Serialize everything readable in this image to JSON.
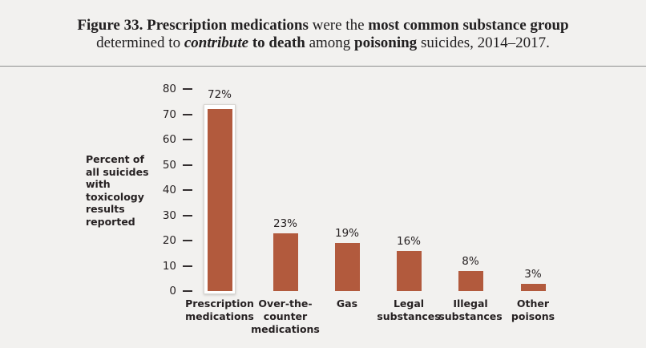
{
  "title": {
    "full_text": "Figure 33. Prescription medications were the most common substance group determined to contribute to death among poisoning suicides, 2014–2017.",
    "line1_segments": [
      {
        "text": "Figure 33. Prescription medications",
        "style": "bold"
      },
      {
        "text": " were the ",
        "style": "regular"
      },
      {
        "text": "most common substance group",
        "style": "bold"
      }
    ],
    "line2_segments": [
      {
        "text": "determined to ",
        "style": "regular"
      },
      {
        "text": "contribute",
        "style": "bold-italic"
      },
      {
        "text": " to death",
        "style": "bold"
      },
      {
        "text": " among ",
        "style": "regular"
      },
      {
        "text": "poisoning",
        "style": "bold"
      },
      {
        "text": " suicides, 2014–2017.",
        "style": "regular"
      }
    ]
  },
  "chart_data": {
    "type": "bar",
    "title": "Figure 33. Prescription medications were the most common substance group determined to contribute to death among poisoning suicides, 2014–2017.",
    "ylabel": "Percent of\nall suicides\nwith\ntoxicology\nresults\nreported",
    "xlabel": "",
    "categories": [
      "Prescription medications",
      "Over-the-counter medications",
      "Gas",
      "Legal substances",
      "Illegal substances",
      "Other poisons"
    ],
    "category_display": [
      "Prescription\nmedications",
      "Over-the-\ncounter\nmedications",
      "Gas",
      "Legal\nsubstances",
      "Illegal\nsubstances",
      "Other\npoisons"
    ],
    "values": [
      72,
      23,
      19,
      16,
      8,
      3
    ],
    "value_labels": [
      "72%",
      "23%",
      "19%",
      "16%",
      "8%",
      "3%"
    ],
    "yticks": [
      80,
      70,
      60,
      50,
      40,
      30,
      20,
      10,
      0
    ],
    "ylim": [
      0,
      80
    ],
    "grid": false,
    "legend": "none",
    "highlight_index": 0,
    "highlight_style": "white-frame-around-bar",
    "bar_color": "#b25a3d",
    "background_color": "#f2f1ef",
    "text_color": "#262122"
  }
}
